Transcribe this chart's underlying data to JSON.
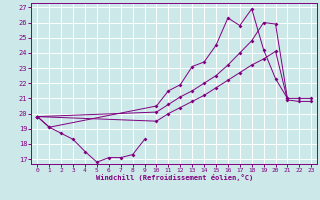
{
  "xlabel": "Windchill (Refroidissement éolien,°C)",
  "xlim": [
    -0.5,
    23.5
  ],
  "ylim": [
    16.7,
    27.3
  ],
  "yticks": [
    17,
    18,
    19,
    20,
    21,
    22,
    23,
    24,
    25,
    26,
    27
  ],
  "xticks": [
    0,
    1,
    2,
    3,
    4,
    5,
    6,
    7,
    8,
    9,
    10,
    11,
    12,
    13,
    14,
    15,
    16,
    17,
    18,
    19,
    20,
    21,
    22,
    23
  ],
  "bg_color": "#cce8e8",
  "line_color": "#800080",
  "grid_color": "#ffffff",
  "line1_x": [
    0,
    1,
    2,
    3,
    4,
    5,
    6,
    7,
    8,
    9
  ],
  "line1_y": [
    19.8,
    19.1,
    18.7,
    18.3,
    17.5,
    16.8,
    17.1,
    17.1,
    17.3,
    18.3
  ],
  "line2_x": [
    0,
    1,
    10,
    11,
    12,
    13,
    14,
    15,
    16,
    17,
    18,
    19,
    20,
    21
  ],
  "line2_y": [
    19.8,
    19.1,
    20.5,
    21.5,
    21.9,
    23.1,
    23.4,
    24.5,
    26.3,
    25.8,
    26.9,
    24.2,
    22.3,
    21.0
  ],
  "line3_x": [
    0,
    10,
    11,
    12,
    13,
    14,
    15,
    16,
    17,
    18,
    19,
    20,
    21,
    22,
    23
  ],
  "line3_y": [
    19.8,
    20.1,
    20.6,
    21.1,
    21.5,
    22.0,
    22.5,
    23.2,
    24.0,
    24.8,
    26.0,
    25.9,
    21.0,
    21.0,
    21.0
  ],
  "line4_x": [
    0,
    10,
    11,
    12,
    13,
    14,
    15,
    16,
    17,
    18,
    19,
    20,
    21,
    22,
    23
  ],
  "line4_y": [
    19.8,
    19.5,
    20.0,
    20.4,
    20.8,
    21.2,
    21.7,
    22.2,
    22.7,
    23.2,
    23.6,
    24.1,
    20.9,
    20.8,
    20.8
  ]
}
